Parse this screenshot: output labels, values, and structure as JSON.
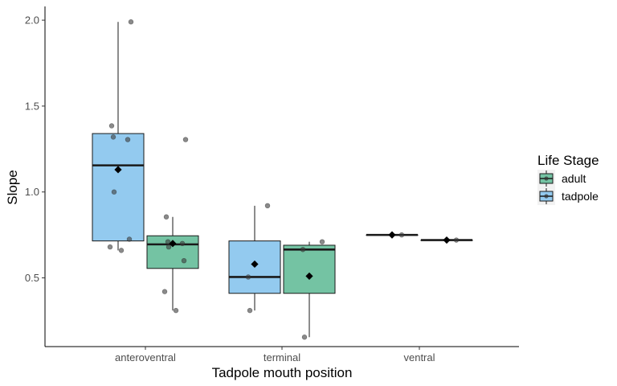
{
  "chart_data": {
    "type": "boxplot",
    "title": "",
    "xlabel": "Tadpole mouth position",
    "ylabel": "Slope",
    "categories": [
      "anteroventral",
      "terminal",
      "ventral"
    ],
    "yticks": [
      0.5,
      1.0,
      1.5,
      2.0
    ],
    "ytick_labels": [
      "0.5",
      "1.0",
      "1.5",
      "2.0"
    ],
    "ylim": [
      0.1,
      2.08
    ],
    "grid": false,
    "legend": {
      "title": "Life Stage",
      "placement": "right",
      "items": [
        {
          "name": "adult",
          "color": "#74C3A3"
        },
        {
          "name": "tadpole",
          "color": "#93CAEF"
        }
      ]
    },
    "series": [
      {
        "name": "tadpole",
        "color": "#93CAEF",
        "boxes": [
          {
            "category": "anteroventral",
            "min": 0.66,
            "q1": 0.715,
            "median": 1.155,
            "q3": 1.34,
            "max": 1.99,
            "mean": 1.13,
            "points": [
              1.99,
              1.385,
              1.32,
              1.305,
              1.0,
              0.725,
              0.68,
              0.66
            ]
          },
          {
            "category": "terminal",
            "min": 0.31,
            "q1": 0.41,
            "median": 0.505,
            "q3": 0.715,
            "max": 0.92,
            "mean": 0.58,
            "points": [
              0.92,
              0.505,
              0.31
            ]
          },
          {
            "category": "ventral",
            "min": 0.75,
            "q1": 0.75,
            "median": 0.75,
            "q3": 0.75,
            "max": 0.75,
            "mean": 0.75,
            "points": [
              0.75
            ]
          }
        ]
      },
      {
        "name": "adult",
        "color": "#74C3A3",
        "boxes": [
          {
            "category": "anteroventral",
            "min": 0.31,
            "q1": 0.555,
            "median": 0.695,
            "q3": 0.745,
            "max": 0.855,
            "mean": 0.7,
            "points": [
              1.305,
              0.855,
              0.71,
              0.7,
              0.68,
              0.6,
              0.42,
              0.31
            ]
          },
          {
            "category": "terminal",
            "min": 0.155,
            "q1": 0.41,
            "median": 0.665,
            "q3": 0.69,
            "max": 0.71,
            "mean": 0.51,
            "points": [
              0.71,
              0.665,
              0.155
            ]
          },
          {
            "category": "ventral",
            "min": 0.72,
            "q1": 0.72,
            "median": 0.72,
            "q3": 0.72,
            "max": 0.72,
            "mean": 0.72,
            "points": [
              0.72
            ]
          }
        ]
      }
    ]
  }
}
